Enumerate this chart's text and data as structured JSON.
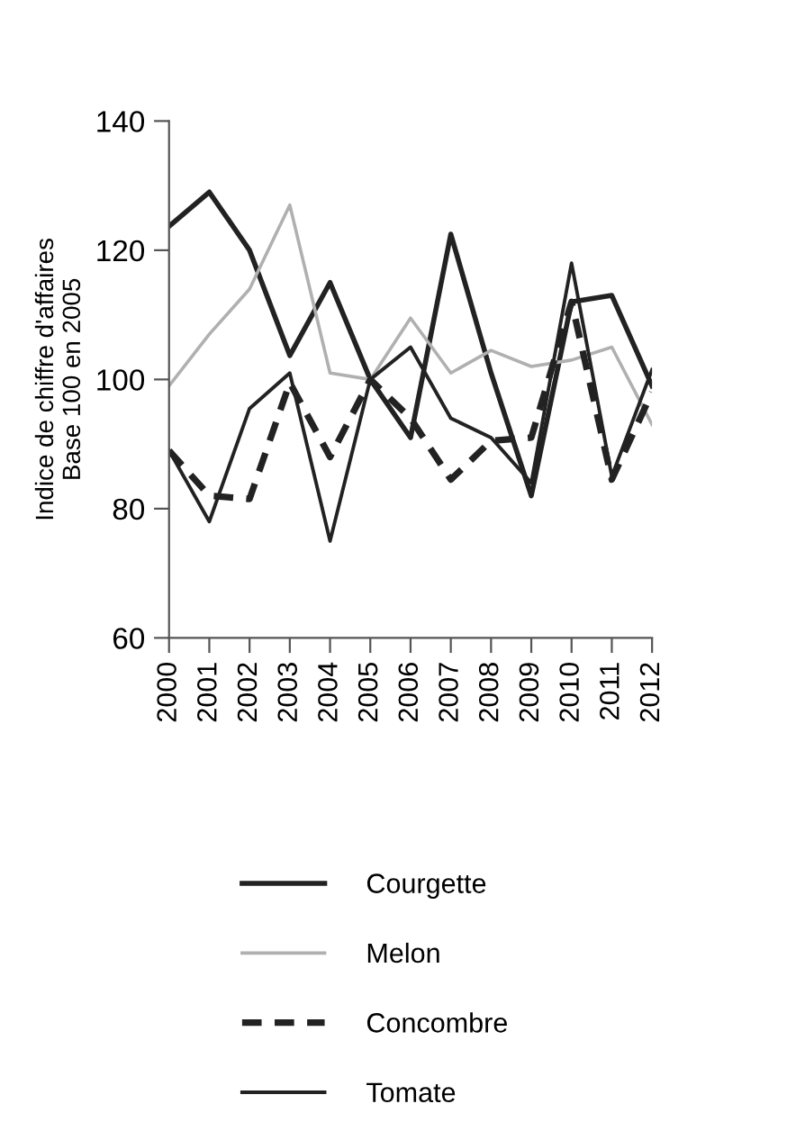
{
  "chart_data": {
    "type": "line",
    "ylabel": "Indice de chiffre d'affaires\nBase 100 en 2005",
    "categories": [
      "2000",
      "2001",
      "2002",
      "2003",
      "2004",
      "2005",
      "2006",
      "2007",
      "2008",
      "2009",
      "2010",
      "2011",
      "2012"
    ],
    "ylim": [
      60,
      140
    ],
    "yticks": [
      60,
      80,
      100,
      120,
      140
    ],
    "grid": false,
    "legend": "bottom",
    "series": [
      {
        "name": "Courgette",
        "color": "#222222",
        "line_style": "solid",
        "values": [
          123.7,
          129,
          120,
          103.7,
          115,
          100,
          91,
          122.5,
          101,
          82,
          112,
          113,
          99
        ]
      },
      {
        "name": "Melon",
        "color": "#b0b0b0",
        "line_style": "solid",
        "values": [
          99,
          107,
          114,
          127,
          101,
          100,
          109.5,
          101,
          104.5,
          102,
          103,
          105,
          93
        ]
      },
      {
        "name": "Concombre",
        "color": "#222222",
        "line_style": "dashed",
        "values": [
          89,
          82,
          81.5,
          99.5,
          88,
          100,
          94,
          84.5,
          90.5,
          91,
          112,
          84.5,
          98
        ]
      },
      {
        "name": "Tomate",
        "color": "#222222",
        "line_style": "solid",
        "values": [
          89,
          78,
          95.5,
          101,
          75,
          100,
          105,
          94,
          91,
          84,
          118,
          85,
          101.5
        ]
      }
    ]
  }
}
